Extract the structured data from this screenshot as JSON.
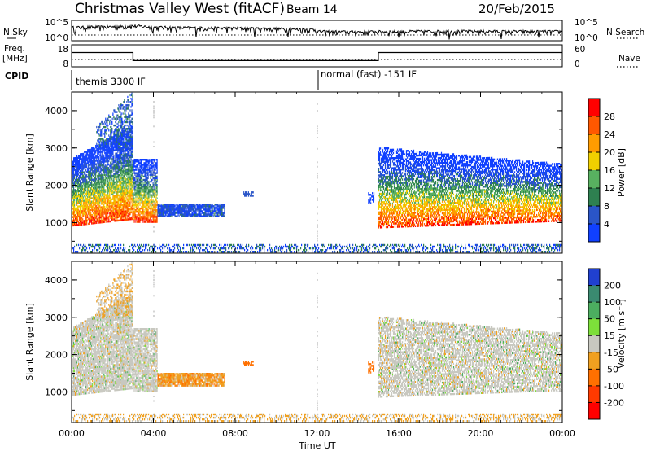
{
  "header": {
    "title": "Christmas Valley West (fitACF)",
    "beam": "Beam 14",
    "date": "20/Feb/2015"
  },
  "left_labels": {
    "nsky": "N.Sky",
    "freq": "Freq.",
    "freq_unit": "[MHz]",
    "cpid": "CPID"
  },
  "right_labels": {
    "nsearch": "N.Search",
    "nave": "Nave"
  },
  "noise_ticks": {
    "top": "10^5",
    "bottom": "10^0"
  },
  "freq_ticks": {
    "top": "18",
    "bottom": "8"
  },
  "nave_ticks": {
    "top": "60",
    "bottom": "0"
  },
  "cpid": {
    "first": "themis 3300 IF",
    "second": "normal (fast) -151 IF"
  },
  "x_axis": {
    "label": "Time UT",
    "ticks": [
      "00:00",
      "04:00",
      "08:00",
      "12:00",
      "16:00",
      "20:00",
      "00:00"
    ]
  },
  "y_axis": {
    "label": "Slant Range [km]",
    "ticks": [
      "1000",
      "2000",
      "3000",
      "4000"
    ]
  },
  "power_bar": {
    "label": "Power [dB]",
    "ticks": [
      "4",
      "8",
      "12",
      "16",
      "20",
      "24",
      "28"
    ],
    "colors": [
      "#1040ff",
      "#2a55c8",
      "#2e8050",
      "#58b060",
      "#f0d000",
      "#ff9c00",
      "#ff5800",
      "#ff0000"
    ]
  },
  "velocity_bar": {
    "label": "Velocity [m s⁻¹]",
    "ticks": [
      "200",
      "100",
      "50",
      "15",
      "-15",
      "-50",
      "-100",
      "-200"
    ],
    "colors": [
      "#2040d0",
      "#3a8a70",
      "#4cae60",
      "#7ddf3a",
      "#c8c8c0",
      "#f0a020",
      "#ff7000",
      "#ff3a00",
      "#ff0000"
    ]
  },
  "chart_data": [
    {
      "type": "line",
      "title": "N.Sky / N.Search",
      "x": [
        0,
        2,
        3,
        4,
        6,
        8,
        10,
        12,
        14,
        16,
        18,
        20,
        22,
        24
      ],
      "series": [
        {
          "values": [
            1000,
            1600,
            2500,
            1200,
            800,
            700,
            500,
            300,
            250,
            300,
            350,
            350,
            300,
            300
          ]
        }
      ],
      "ylim": [
        1,
        100000
      ],
      "yscale": "log"
    },
    {
      "type": "line",
      "title": "Freq. [MHz] / Nave",
      "x": [
        0,
        3,
        3,
        15,
        15,
        24
      ],
      "series": [
        {
          "name": "Freq.",
          "values": [
            14.5,
            14.5,
            10.8,
            10.8,
            14.5,
            14.5
          ]
        },
        {
          "name": "Nave",
          "values": [
            20,
            20,
            20,
            20,
            20,
            20
          ]
        }
      ],
      "ylim": [
        8,
        18
      ]
    },
    {
      "type": "heatmap",
      "title": "Power [dB]",
      "xlabel": "Time UT",
      "ylabel": "Slant Range [km]",
      "xlim": [
        0,
        24
      ],
      "ylim": [
        180,
        4500
      ],
      "colorbar": {
        "label": "Power [dB]",
        "ticks": [
          4,
          8,
          12,
          16,
          20,
          24,
          28
        ]
      }
    },
    {
      "type": "heatmap",
      "title": "Velocity [m s-1]",
      "xlabel": "Time UT",
      "ylabel": "Slant Range [km]",
      "xlim": [
        0,
        24
      ],
      "ylim": [
        180,
        4500
      ],
      "colorbar": {
        "label": "Velocity [m s-1]",
        "ticks": [
          200,
          100,
          50,
          15,
          -15,
          -50,
          -100,
          -200
        ]
      }
    }
  ]
}
